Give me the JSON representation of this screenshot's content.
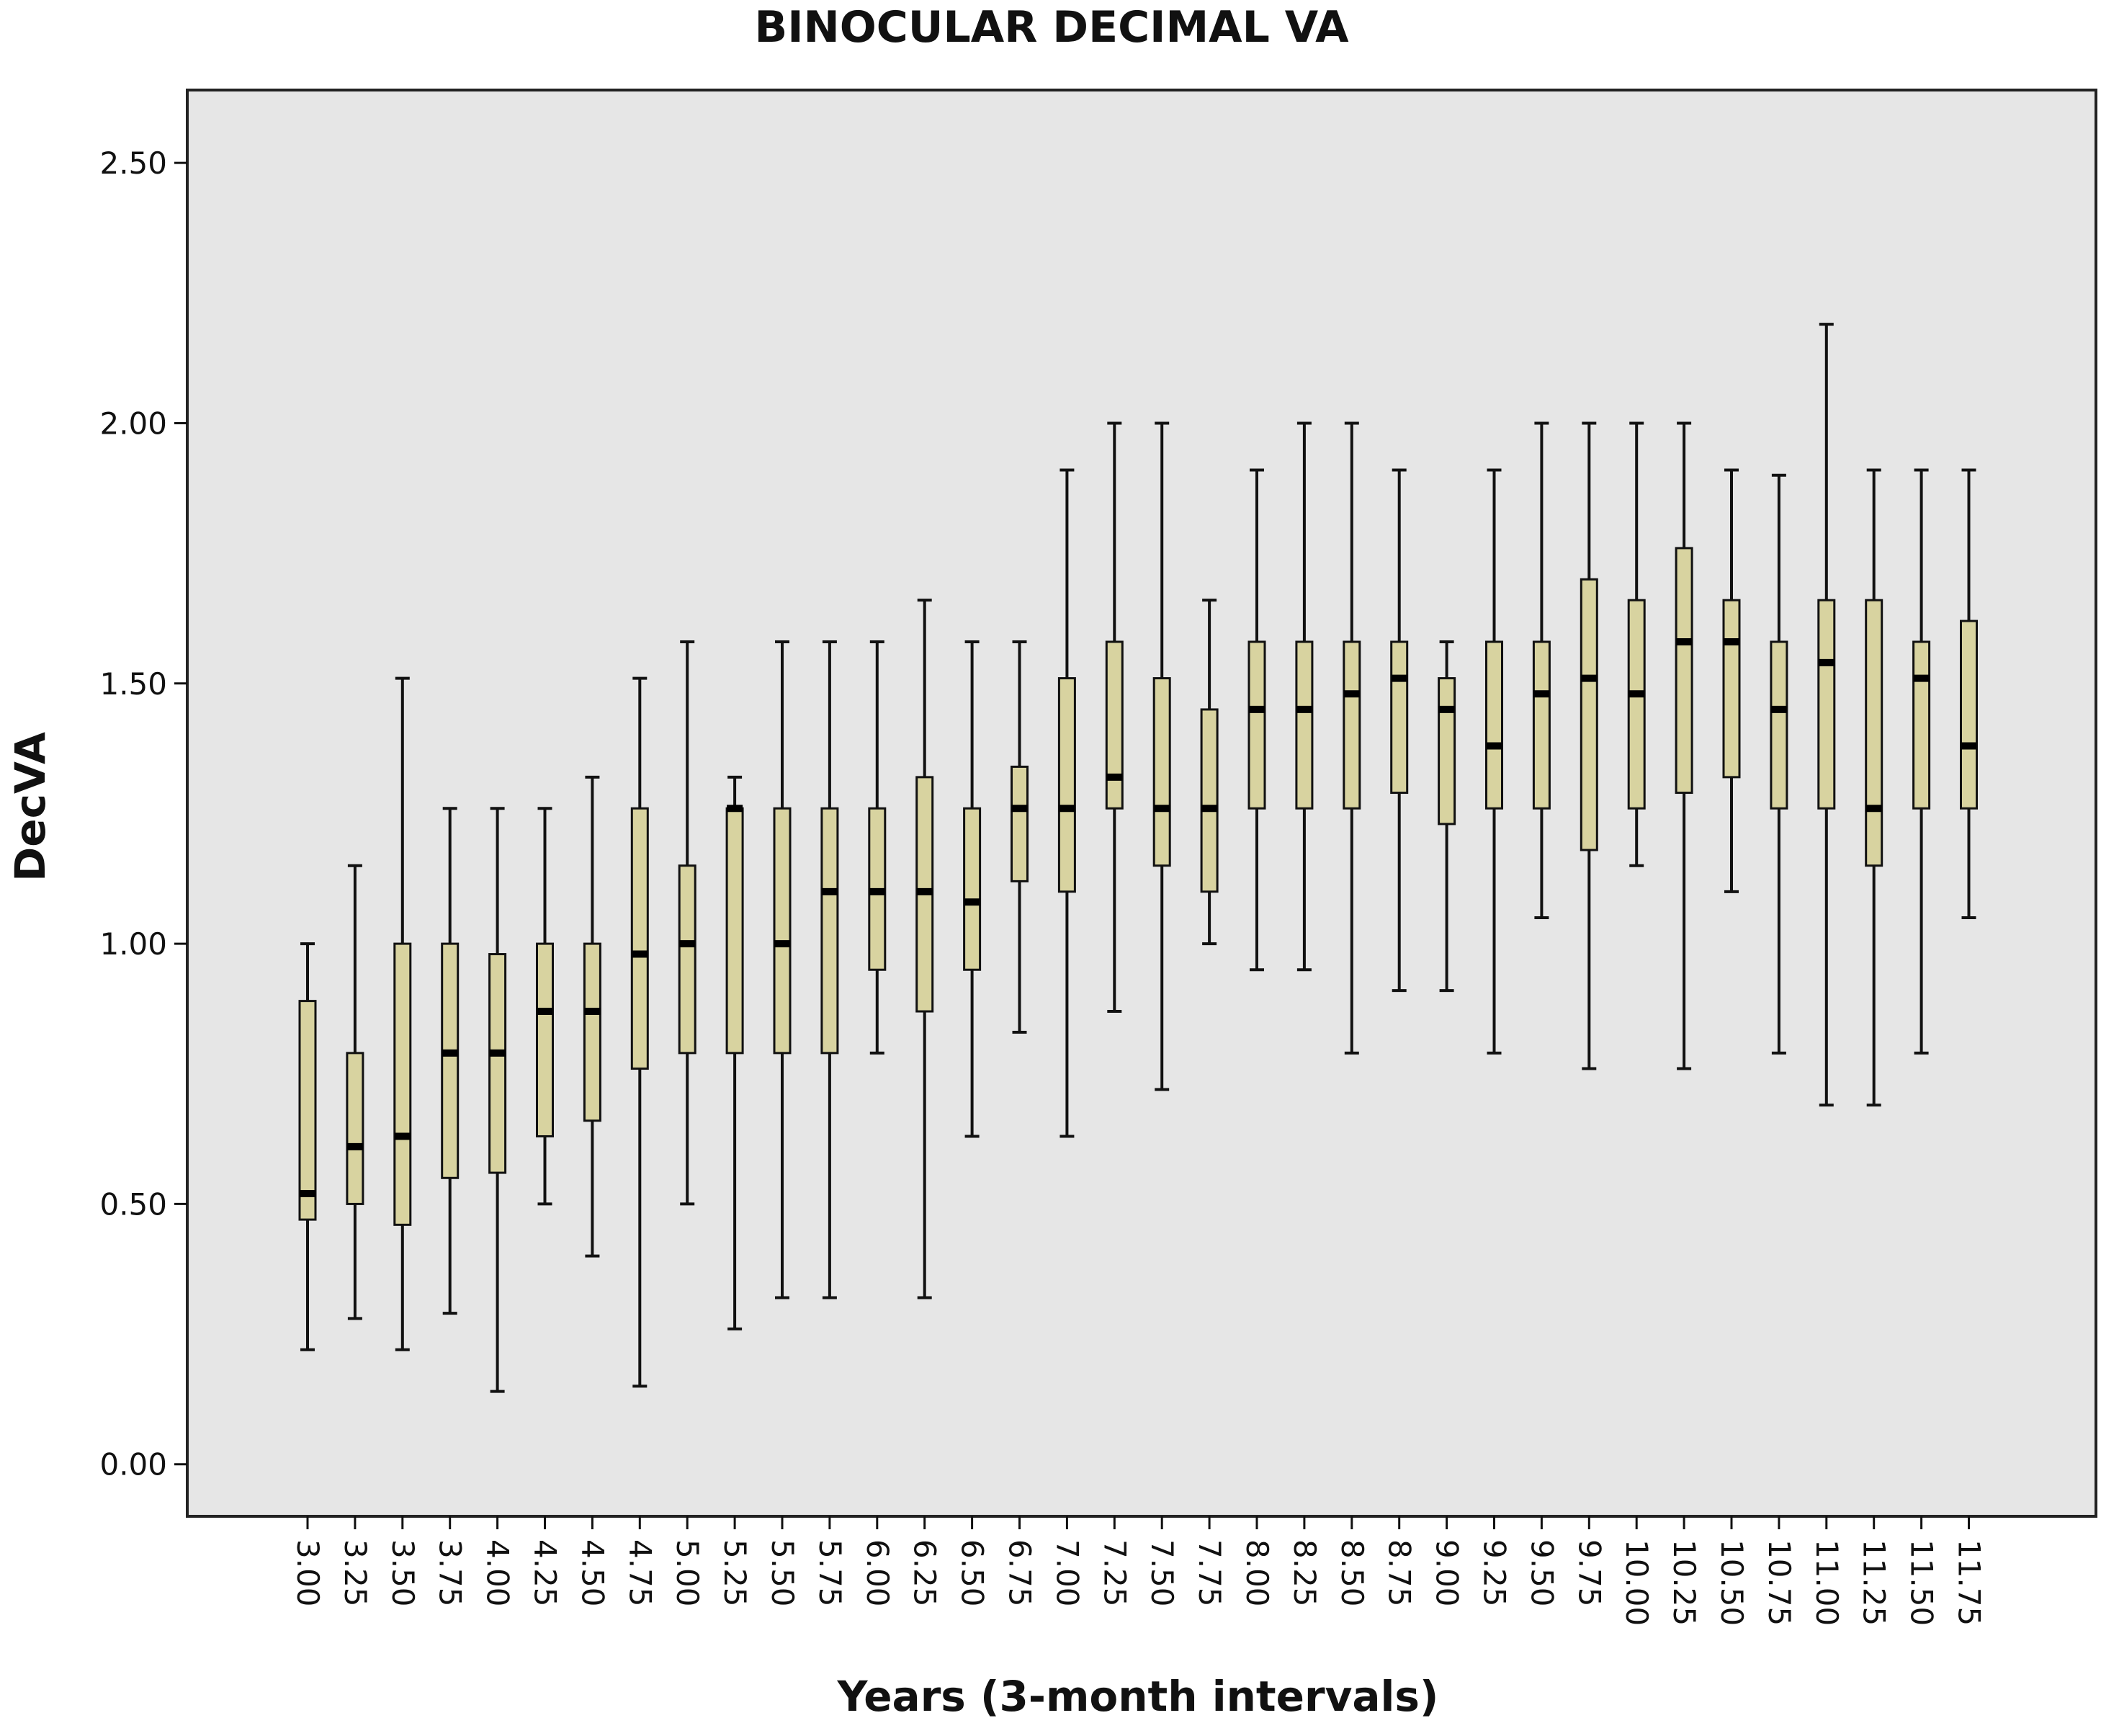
{
  "chart_data": {
    "type": "boxplot",
    "title": "BINOCULAR DECIMAL VA",
    "xlabel": "Years (3-month intervals)",
    "ylabel": "DecVA",
    "ylim": [
      -0.1,
      2.64
    ],
    "yticks": [
      "0.00",
      "0.50",
      "1.00",
      "1.50",
      "2.00",
      "2.50"
    ],
    "ytick_values": [
      0,
      0.5,
      1.0,
      1.5,
      2.0,
      2.5
    ],
    "grid": false,
    "box_color": "#d8d3a0",
    "plot_background": "#e6e6e6",
    "categories": [
      "3.00",
      "3.25",
      "3.50",
      "3.75",
      "4.00",
      "4.25",
      "4.50",
      "4.75",
      "5.00",
      "5.25",
      "5.50",
      "5.75",
      "6.00",
      "6.25",
      "6.50",
      "6.75",
      "7.00",
      "7.25",
      "7.50",
      "7.75",
      "8.00",
      "8.25",
      "8.50",
      "8.75",
      "9.00",
      "9.25",
      "9.50",
      "9.75",
      "10.00",
      "10.25",
      "10.50",
      "10.75",
      "11.00",
      "11.25",
      "11.50",
      "11.75"
    ],
    "boxes": [
      {
        "min": 0.22,
        "q1": 0.47,
        "median": 0.52,
        "q3": 0.89,
        "max": 1.0
      },
      {
        "min": 0.28,
        "q1": 0.5,
        "median": 0.61,
        "q3": 0.79,
        "max": 1.15
      },
      {
        "min": 0.22,
        "q1": 0.46,
        "median": 0.63,
        "q3": 1.0,
        "max": 1.51
      },
      {
        "min": 0.29,
        "q1": 0.55,
        "median": 0.79,
        "q3": 1.0,
        "max": 1.26
      },
      {
        "min": 0.14,
        "q1": 0.56,
        "median": 0.79,
        "q3": 0.98,
        "max": 1.26
      },
      {
        "min": 0.5,
        "q1": 0.63,
        "median": 0.87,
        "q3": 1.0,
        "max": 1.26
      },
      {
        "min": 0.4,
        "q1": 0.66,
        "median": 0.87,
        "q3": 1.0,
        "max": 1.32
      },
      {
        "min": 0.15,
        "q1": 0.76,
        "median": 0.98,
        "q3": 1.26,
        "max": 1.51
      },
      {
        "min": 0.5,
        "q1": 0.79,
        "median": 1.0,
        "q3": 1.15,
        "max": 1.58
      },
      {
        "min": 0.26,
        "q1": 0.79,
        "median": 1.26,
        "q3": 1.26,
        "max": 1.32
      },
      {
        "min": 0.32,
        "q1": 0.79,
        "median": 1.0,
        "q3": 1.26,
        "max": 1.58
      },
      {
        "min": 0.32,
        "q1": 0.79,
        "median": 1.1,
        "q3": 1.26,
        "max": 1.58
      },
      {
        "min": 0.79,
        "q1": 0.95,
        "median": 1.1,
        "q3": 1.26,
        "max": 1.58
      },
      {
        "min": 0.32,
        "q1": 0.87,
        "median": 1.1,
        "q3": 1.32,
        "max": 1.66
      },
      {
        "min": 0.63,
        "q1": 0.95,
        "median": 1.08,
        "q3": 1.26,
        "max": 1.58
      },
      {
        "min": 0.83,
        "q1": 1.12,
        "median": 1.26,
        "q3": 1.34,
        "max": 1.58
      },
      {
        "min": 0.63,
        "q1": 1.1,
        "median": 1.26,
        "q3": 1.51,
        "max": 1.91
      },
      {
        "min": 0.87,
        "q1": 1.26,
        "median": 1.32,
        "q3": 1.58,
        "max": 2.0
      },
      {
        "min": 0.72,
        "q1": 1.15,
        "median": 1.26,
        "q3": 1.51,
        "max": 2.0
      },
      {
        "min": 1.0,
        "q1": 1.1,
        "median": 1.26,
        "q3": 1.45,
        "max": 1.66
      },
      {
        "min": 0.95,
        "q1": 1.26,
        "median": 1.45,
        "q3": 1.58,
        "max": 1.91
      },
      {
        "min": 0.95,
        "q1": 1.26,
        "median": 1.45,
        "q3": 1.58,
        "max": 2.0
      },
      {
        "min": 0.79,
        "q1": 1.26,
        "median": 1.48,
        "q3": 1.58,
        "max": 2.0
      },
      {
        "min": 0.91,
        "q1": 1.29,
        "median": 1.51,
        "q3": 1.58,
        "max": 1.91
      },
      {
        "min": 0.91,
        "q1": 1.23,
        "median": 1.45,
        "q3": 1.51,
        "max": 1.58
      },
      {
        "min": 0.79,
        "q1": 1.26,
        "median": 1.38,
        "q3": 1.58,
        "max": 1.91
      },
      {
        "min": 1.05,
        "q1": 1.26,
        "median": 1.48,
        "q3": 1.58,
        "max": 2.0
      },
      {
        "min": 0.76,
        "q1": 1.18,
        "median": 1.51,
        "q3": 1.7,
        "max": 2.0
      },
      {
        "min": 1.15,
        "q1": 1.26,
        "median": 1.48,
        "q3": 1.66,
        "max": 2.0
      },
      {
        "min": 0.76,
        "q1": 1.29,
        "median": 1.58,
        "q3": 1.76,
        "max": 2.0
      },
      {
        "min": 1.1,
        "q1": 1.32,
        "median": 1.58,
        "q3": 1.66,
        "max": 1.91
      },
      {
        "min": 0.79,
        "q1": 1.26,
        "median": 1.45,
        "q3": 1.58,
        "max": 1.9
      },
      {
        "min": 0.69,
        "q1": 1.26,
        "median": 1.54,
        "q3": 1.66,
        "max": 2.19
      },
      {
        "min": 0.69,
        "q1": 1.15,
        "median": 1.26,
        "q3": 1.66,
        "max": 1.91
      },
      {
        "min": 0.79,
        "q1": 1.26,
        "median": 1.51,
        "q3": 1.58,
        "max": 1.91
      },
      {
        "min": 1.05,
        "q1": 1.26,
        "median": 1.38,
        "q3": 1.62,
        "max": 1.91
      }
    ]
  }
}
